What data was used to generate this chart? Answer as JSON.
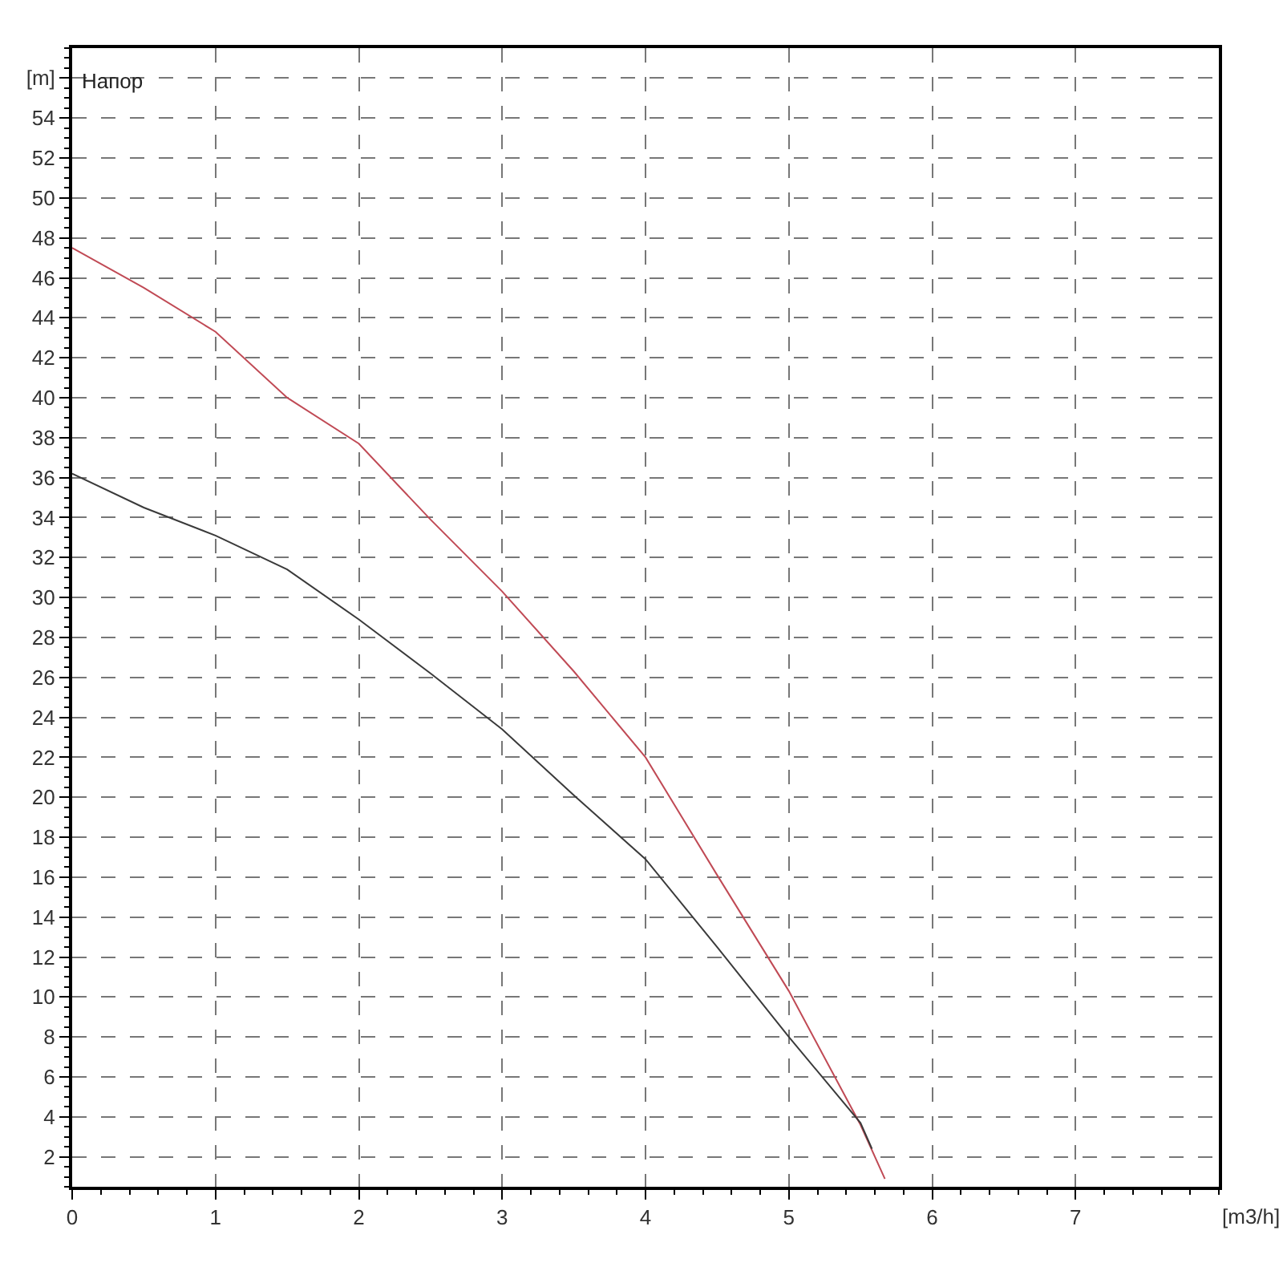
{
  "chart_data": {
    "type": "line",
    "annotations": [
      "Напор"
    ],
    "xlabel": "[m3/h]",
    "series": [
      {
        "color": "#c04a55",
        "x": [
          0,
          0.5,
          1,
          1.5,
          2,
          2.5,
          3,
          3.5,
          4,
          4.5,
          5,
          5.5,
          5.67
        ],
        "values": [
          47.5,
          45.5,
          43.3,
          40.0,
          37.7,
          33.9,
          30.3,
          26.3,
          22.0,
          16.1,
          10.3,
          3.6,
          0.9
        ]
      },
      {
        "color": "#3a3a3a",
        "x": [
          0,
          0.5,
          1,
          1.5,
          2,
          2.5,
          3,
          3.5,
          4,
          4.5,
          5,
          5.5,
          5.58
        ],
        "values": [
          36.2,
          34.5,
          33.1,
          31.4,
          28.9,
          26.2,
          23.4,
          20.1,
          16.9,
          12.5,
          8.0,
          3.7,
          2.4
        ]
      }
    ],
    "xlim": [
      0,
      8
    ],
    "xticks": [
      0,
      1,
      2,
      3,
      4,
      5,
      6,
      7
    ],
    "ylim": [
      0.5,
      57.5
    ],
    "yticks": [
      2,
      4,
      6,
      8,
      10,
      12,
      14,
      16,
      18,
      20,
      22,
      24,
      26,
      28,
      30,
      32,
      34,
      36,
      38,
      40,
      42,
      44,
      46,
      48,
      50,
      52,
      54,
      {
        "value": 56,
        "label": "[m]"
      }
    ],
    "grid": true,
    "marker": "none",
    "line_style": "solid"
  }
}
